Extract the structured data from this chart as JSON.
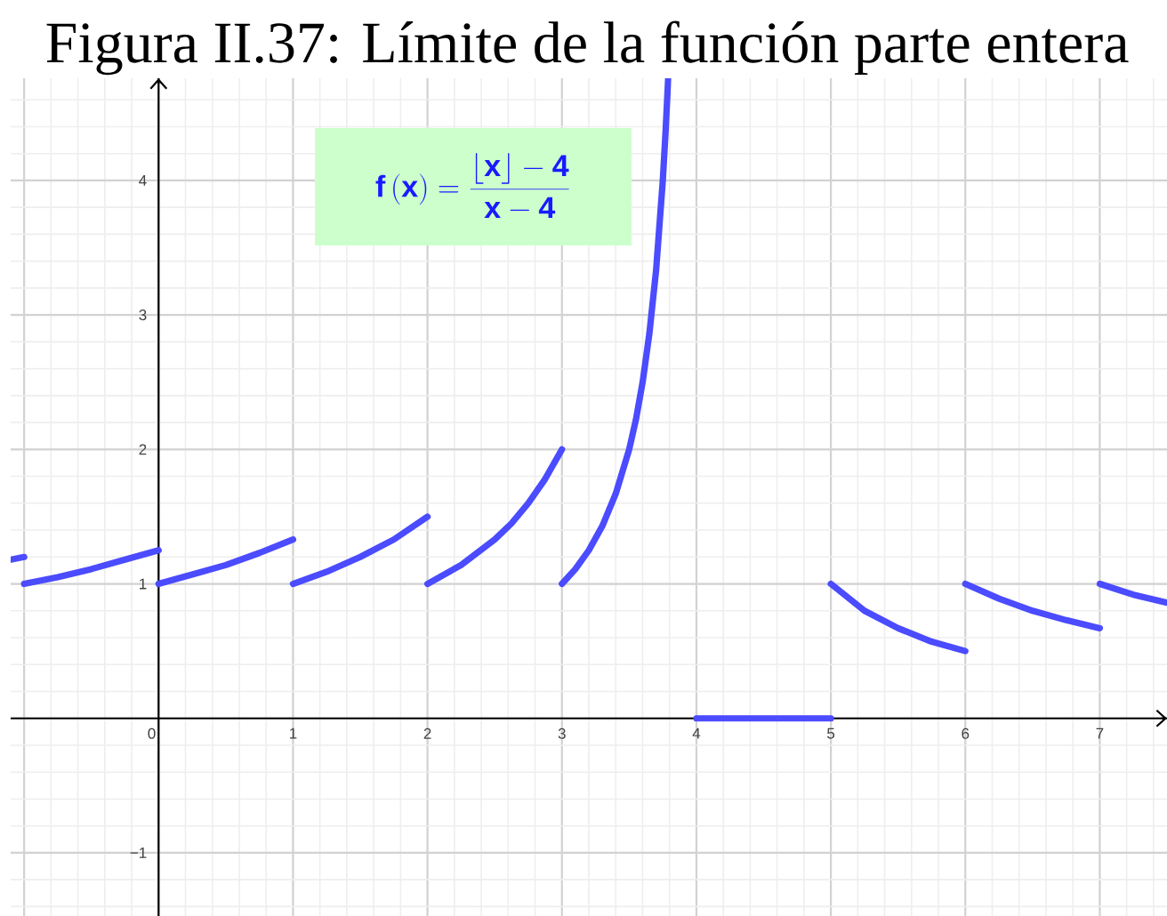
{
  "chart_data": {
    "type": "line",
    "title": "Figura II.37: Límite de la función parte entera",
    "annotations": [
      "\\mathbf{f}\\,(\\mathbf{x}) = \\frac{\\lfloor \\mathbf{x} \\rfloor - \\mathbf{4}}{\\mathbf{x} - \\mathbf{4}}"
    ],
    "xlim": [
      -1.1,
      7.5
    ],
    "ylim": [
      -1.47,
      4.76
    ],
    "xticks": [
      {
        "value": -1,
        "label": null
      },
      0,
      1,
      2,
      3,
      4,
      5,
      6,
      7
    ],
    "yticks": [
      {
        "value": -1,
        "label": "−1"
      },
      {
        "value": 0,
        "label": null
      },
      1,
      2,
      3,
      4
    ],
    "grid": true,
    "series": [
      {
        "color": "#4b4bff",
        "x": [
          -1.1,
          -1
        ],
        "values": [
          1.18,
          1.2
        ]
      },
      {
        "color": "#4b4bff",
        "x": [
          -1,
          -0.75,
          -0.5,
          -0.25,
          0
        ],
        "values": [
          1,
          1.05,
          1.11,
          1.18,
          1.25
        ]
      },
      {
        "color": "#4b4bff",
        "x": [
          0,
          0.25,
          0.5,
          0.75,
          1
        ],
        "values": [
          1,
          1.07,
          1.14,
          1.23,
          1.33
        ]
      },
      {
        "color": "#4b4bff",
        "x": [
          1,
          1.25,
          1.5,
          1.75,
          2
        ],
        "values": [
          1,
          1.09,
          1.2,
          1.33,
          1.5
        ]
      },
      {
        "color": "#4b4bff",
        "x": [
          2,
          2.25,
          2.5,
          2.625,
          2.75,
          2.875,
          3
        ],
        "values": [
          1,
          1.14,
          1.33,
          1.45,
          1.6,
          1.78,
          2
        ]
      },
      {
        "color": "#4b4bff",
        "x": [
          3,
          3.1,
          3.2,
          3.3,
          3.4,
          3.5,
          3.55,
          3.6,
          3.65,
          3.7,
          3.75,
          3.77,
          3.79
        ],
        "values": [
          1,
          1.11,
          1.25,
          1.43,
          1.67,
          2,
          2.22,
          2.5,
          2.86,
          3.33,
          4,
          4.35,
          4.76
        ]
      },
      {
        "color": "#4b4bff",
        "x": [
          4,
          5
        ],
        "values": [
          0,
          0
        ]
      },
      {
        "color": "#4b4bff",
        "x": [
          5,
          5.25,
          5.5,
          5.75,
          6
        ],
        "values": [
          1,
          0.8,
          0.67,
          0.57,
          0.5
        ]
      },
      {
        "color": "#4b4bff",
        "x": [
          6,
          6.25,
          6.5,
          6.75,
          7
        ],
        "values": [
          1,
          0.89,
          0.8,
          0.73,
          0.67
        ]
      },
      {
        "color": "#4b4bff",
        "x": [
          7,
          7.25,
          7.5
        ],
        "values": [
          1,
          0.92,
          0.86
        ]
      }
    ]
  }
}
